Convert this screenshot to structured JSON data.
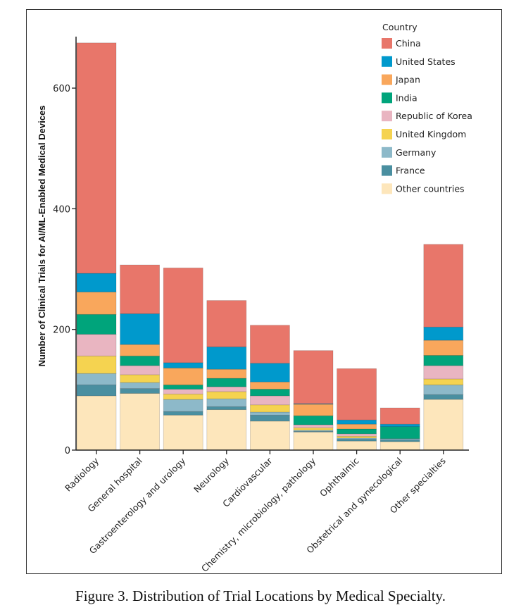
{
  "caption": "Figure 3. Distribution of Trial Locations by Medical Specialty.",
  "chart_data": {
    "type": "bar",
    "stacked": true,
    "title": "",
    "xlabel": "",
    "ylabel": "Number of Clinical Trials for AI/ML-Enabled Medical Devices",
    "ylim": [
      0,
      680
    ],
    "yticks": [
      0,
      200,
      400,
      600
    ],
    "legend_title": "Country",
    "legend_position": "top-right",
    "categories": [
      "Radiology",
      "General hospital",
      "Gastroenterology and urology",
      "Neurology",
      "Cardiovascular",
      "Chemistry, microbiology, pathology",
      "Ophthalmic",
      "Obstetrical and gynecological",
      "Other specialties"
    ],
    "series": [
      {
        "name": "Other countries",
        "color": "#FDE6BB",
        "values": [
          90,
          94,
          58,
          67,
          48,
          30,
          15,
          14,
          84
        ]
      },
      {
        "name": "France",
        "color": "#4A8FA0",
        "values": [
          18,
          8,
          6,
          5,
          10,
          1,
          3,
          3,
          8
        ]
      },
      {
        "name": "Germany",
        "color": "#8DB9C9",
        "values": [
          19,
          10,
          20,
          13,
          5,
          2,
          2,
          2,
          16
        ]
      },
      {
        "name": "United Kingdom",
        "color": "#F5D350",
        "values": [
          29,
          13,
          9,
          12,
          12,
          4,
          3,
          0,
          10
        ]
      },
      {
        "name": "Republic of Korea",
        "color": "#E9B5C1",
        "values": [
          36,
          15,
          8,
          8,
          15,
          5,
          4,
          0,
          22
        ]
      },
      {
        "name": "India",
        "color": "#00A47B",
        "values": [
          33,
          16,
          7,
          14,
          11,
          15,
          8,
          20,
          17
        ]
      },
      {
        "name": "Japan",
        "color": "#F9A75C",
        "values": [
          37,
          19,
          28,
          15,
          12,
          19,
          8,
          0,
          25
        ]
      },
      {
        "name": "United States",
        "color": "#0099CC",
        "values": [
          31,
          51,
          9,
          37,
          31,
          1,
          7,
          4,
          22
        ]
      },
      {
        "name": "China",
        "color": "#E8766A",
        "values": [
          382,
          81,
          157,
          77,
          63,
          88,
          85,
          27,
          137
        ]
      }
    ]
  }
}
